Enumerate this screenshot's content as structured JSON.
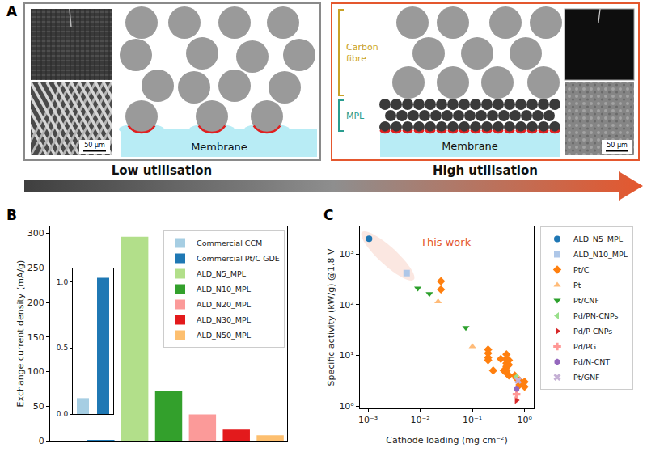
{
  "diagram": {
    "panel": "A",
    "left": {
      "membrane": "Membrane",
      "scale_bar": "50 µm"
    },
    "right": {
      "membrane": "Membrane",
      "scale_bar": "50 µm",
      "layers": [
        "Carbon fibre",
        "MPL"
      ]
    },
    "arrow": {
      "start": "Low utilisation",
      "end": "High utilisation"
    }
  },
  "chart_data": [
    {
      "panel": "B",
      "type": "bar",
      "y_label": "Exchange current density (mA/g)",
      "categories": [
        "Commercial CCM",
        "Commercial Pt/C GDE",
        "ALD_N5_MPL",
        "ALD_N10_MPL",
        "ALD_N20_MPL",
        "ALD_N30_MPL",
        "ALD_N50_MPL"
      ],
      "values": [
        0.12,
        1.03,
        295,
        72,
        38,
        16,
        8
      ],
      "colors": [
        "#a6cee3",
        "#1f78b4",
        "#b2df8a",
        "#33a02c",
        "#fb9a99",
        "#e31a1c",
        "#fdbf6f"
      ],
      "ylim": [
        0,
        310
      ],
      "yticks": [
        0,
        50,
        100,
        150,
        200,
        250,
        300
      ],
      "grid": false,
      "legend": "upper right",
      "tick_labels": "y",
      "inset": {
        "categories": [
          "Commercial CCM",
          "Commercial Pt/C GDE"
        ],
        "ylim": [
          0,
          1.1
        ],
        "yticks": [
          {
            "value": 0,
            "label": "0.0"
          },
          {
            "value": 0.5,
            "label": "0.5"
          },
          {
            "value": 1,
            "label": "1.0"
          }
        ],
        "tick_labels": "y"
      }
    },
    {
      "panel": "C",
      "type": "scatter",
      "x_label": "Cathode loading (mg cm⁻²)",
      "y_label": "Specific activity (kW/g) @1.8 V",
      "log": true,
      "xlim": [
        0.0007,
        1.5
      ],
      "ylim": [
        0.9,
        3500
      ],
      "xticks": [
        {
          "value": 0.001,
          "label": "10⁻³"
        },
        {
          "value": 0.01,
          "label": "10⁻²"
        },
        {
          "value": 0.1,
          "label": "10⁻¹"
        },
        {
          "value": 1,
          "label": "10⁰"
        }
      ],
      "yticks": [
        {
          "value": 1,
          "label": "10⁰"
        },
        {
          "value": 10,
          "label": "10¹"
        },
        {
          "value": 100,
          "label": "10²"
        },
        {
          "value": 1000,
          "label": "10³"
        }
      ],
      "grid": false,
      "legend": "right",
      "annotations": [
        {
          "text": "This work",
          "color": "#e4572e"
        }
      ],
      "series": [
        {
          "name": "ALD_N5_MPL",
          "color": "#1f77b4",
          "marker": "circle",
          "x": [
            0.00105
          ],
          "y": [
            2000
          ]
        },
        {
          "name": "ALD_N10_MPL",
          "color": "#aec7e8",
          "marker": "square",
          "x": [
            0.0055
          ],
          "y": [
            420
          ]
        },
        {
          "name": "Pt/C",
          "color": "#ff7f0e",
          "marker": "diamond",
          "x": [
            0.025,
            0.025,
            0.2,
            0.2,
            0.2,
            0.2,
            0.25,
            0.35,
            0.4,
            0.45,
            0.45,
            0.45,
            0.45,
            0.45,
            0.45,
            0.5,
            0.5,
            0.5,
            0.65,
            0.7,
            0.8,
            0.8,
            1.0,
            1.0
          ],
          "y": [
            290,
            200,
            13,
            11,
            9,
            8,
            5,
            8.5,
            5,
            10.5,
            8.5,
            7,
            6,
            5,
            4.5,
            6.5,
            8,
            4,
            4,
            3.5,
            3.2,
            2.6,
            3,
            2.4
          ]
        },
        {
          "name": "Pt",
          "color": "#ffbb78",
          "marker": "triangle-up",
          "x": [
            0.022,
            0.1
          ],
          "y": [
            115,
            15
          ]
        },
        {
          "name": "Pt/CNF",
          "color": "#2ca02c",
          "marker": "triangle-down",
          "x": [
            0.009,
            0.015,
            0.075
          ],
          "y": [
            210,
            165,
            35
          ]
        },
        {
          "name": "Pd/PN-CNPs",
          "color": "#98df8a",
          "marker": "triangle-left",
          "x": [
            0.7
          ],
          "y": [
            3.8
          ]
        },
        {
          "name": "Pd/P-CNPs",
          "color": "#d62728",
          "marker": "triangle-right",
          "x": [
            0.7
          ],
          "y": [
            1.3
          ]
        },
        {
          "name": "Pd/PG",
          "color": "#ff9896",
          "marker": "cross",
          "x": [
            0.7
          ],
          "y": [
            1.7
          ]
        },
        {
          "name": "Pd/N-CNT",
          "color": "#9467bd",
          "marker": "hexagon",
          "x": [
            0.7
          ],
          "y": [
            2.2
          ]
        },
        {
          "name": "Pt/GNF",
          "color": "#c5b0d5",
          "marker": "x",
          "x": [
            0.75
          ],
          "y": [
            3.2
          ]
        }
      ]
    }
  ]
}
